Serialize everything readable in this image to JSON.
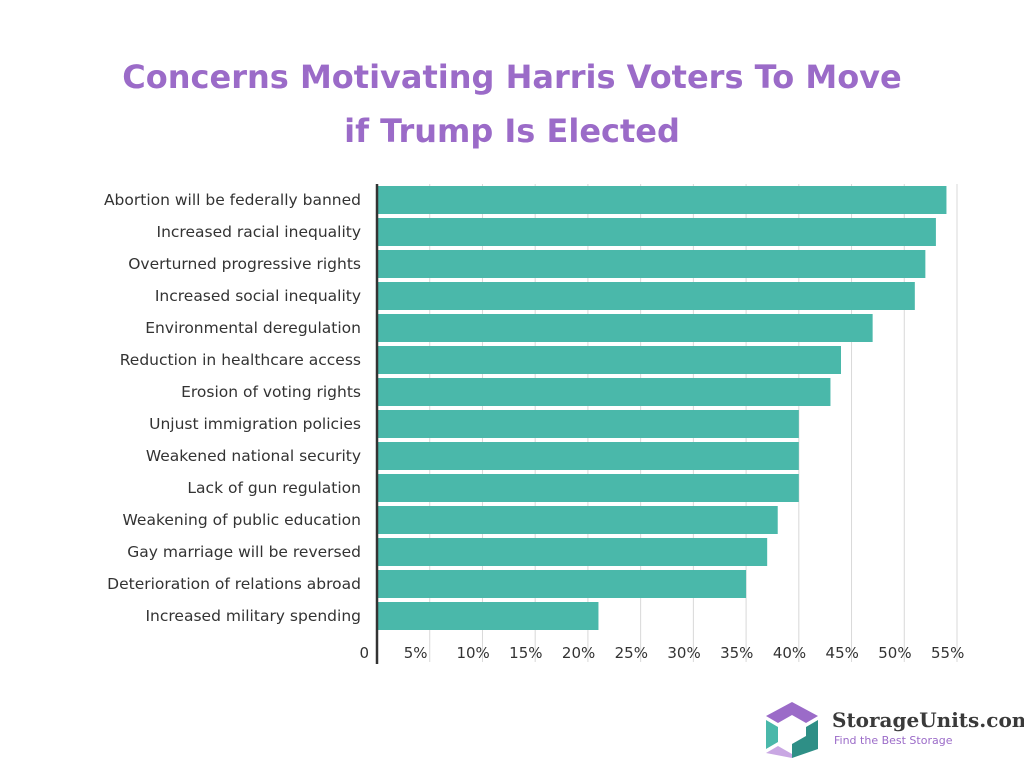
{
  "chart_data": {
    "type": "bar",
    "orientation": "horizontal",
    "title_lines": [
      "Concerns Motivating Harris Voters To Move",
      "if Trump Is Elected"
    ],
    "categories": [
      "Abortion will be federally banned",
      "Increased racial inequality",
      "Overturned progressive rights",
      "Increased social inequality",
      "Environmental deregulation",
      "Reduction in healthcare access",
      "Erosion of voting rights",
      "Unjust immigration policies",
      "Weakened national security",
      "Lack of gun regulation",
      "Weakening of public education",
      "Gay marriage will be reversed",
      "Deterioration of relations abroad",
      "Increased military spending"
    ],
    "values": [
      54,
      53,
      52,
      51,
      47,
      44,
      43,
      40,
      40,
      40,
      38,
      37,
      35,
      21
    ],
    "xlim": [
      0,
      55
    ],
    "xticks": [
      "0",
      "5%",
      "10%",
      "15%",
      "20%",
      "25%",
      "30%",
      "35%",
      "40%",
      "45%",
      "50%",
      "55%"
    ],
    "bar_color": "#4ab8aa",
    "grid": true
  },
  "brand": {
    "name": "StorageUnits.com",
    "tagline": "Find the Best Storage",
    "logo_colors": [
      "#9b6bc8",
      "#4ab8aa",
      "#2e8f86",
      "#c9a7e3"
    ]
  }
}
